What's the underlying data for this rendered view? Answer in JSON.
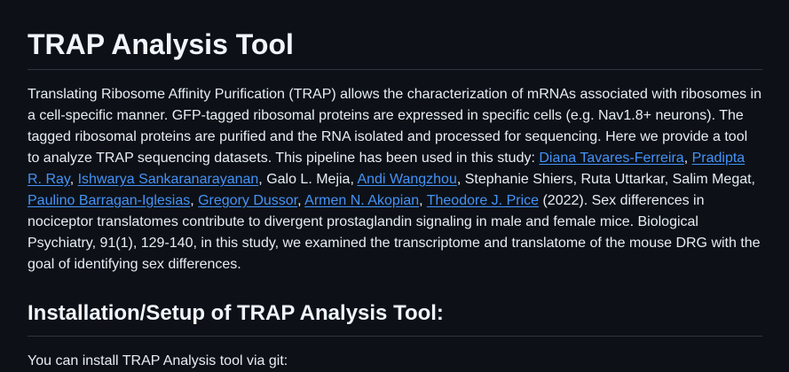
{
  "title": "TRAP Analysis Tool",
  "intro": {
    "text_1": "Translating Ribosome Affinity Purification (TRAP) allows the characterization of mRNAs associated with ribosomes in a cell-specific manner. GFP-tagged ribosomal proteins are expressed in specific cells (e.g. Nav1.8+ neurons). The tagged ribosomal proteins are purified and the RNA isolated and processed for sequencing. Here we provide a tool to analyze TRAP sequencing datasets. This pipeline has been used in this study: ",
    "author_1": "Diana Tavares-Ferreira",
    "sep_1": ", ",
    "author_2": "Pradipta R. Ray",
    "sep_2": ", ",
    "author_3": "Ishwarya Sankaranarayanan",
    "sep_3": ", Galo L. Mejia, ",
    "author_4": "Andi Wangzhou",
    "sep_4": ", Stephanie Shiers, Ruta Uttarkar, Salim Megat, ",
    "author_5": "Paulino Barragan-Iglesias",
    "sep_5": ", ",
    "author_6": "Gregory Dussor",
    "sep_6": ", ",
    "author_7": "Armen N. Akopian",
    "sep_7": ", ",
    "author_8": "Theodore J. Price",
    "text_2": " (2022). Sex differences in nociceptor translatomes contribute to divergent prostaglandin signaling in male and female mice. Biological Psychiatry, 91(1), 129-140, in this study, we examined the transcriptome and translatome of the mouse DRG with the goal of identifying sex differences."
  },
  "install": {
    "heading": "Installation/Setup of TRAP Analysis Tool:",
    "text": "You can install TRAP Analysis tool via git:"
  },
  "colors": {
    "background": "#0d1117",
    "text": "#e6edf3",
    "link": "#4493f8",
    "divider": "#30363d"
  }
}
